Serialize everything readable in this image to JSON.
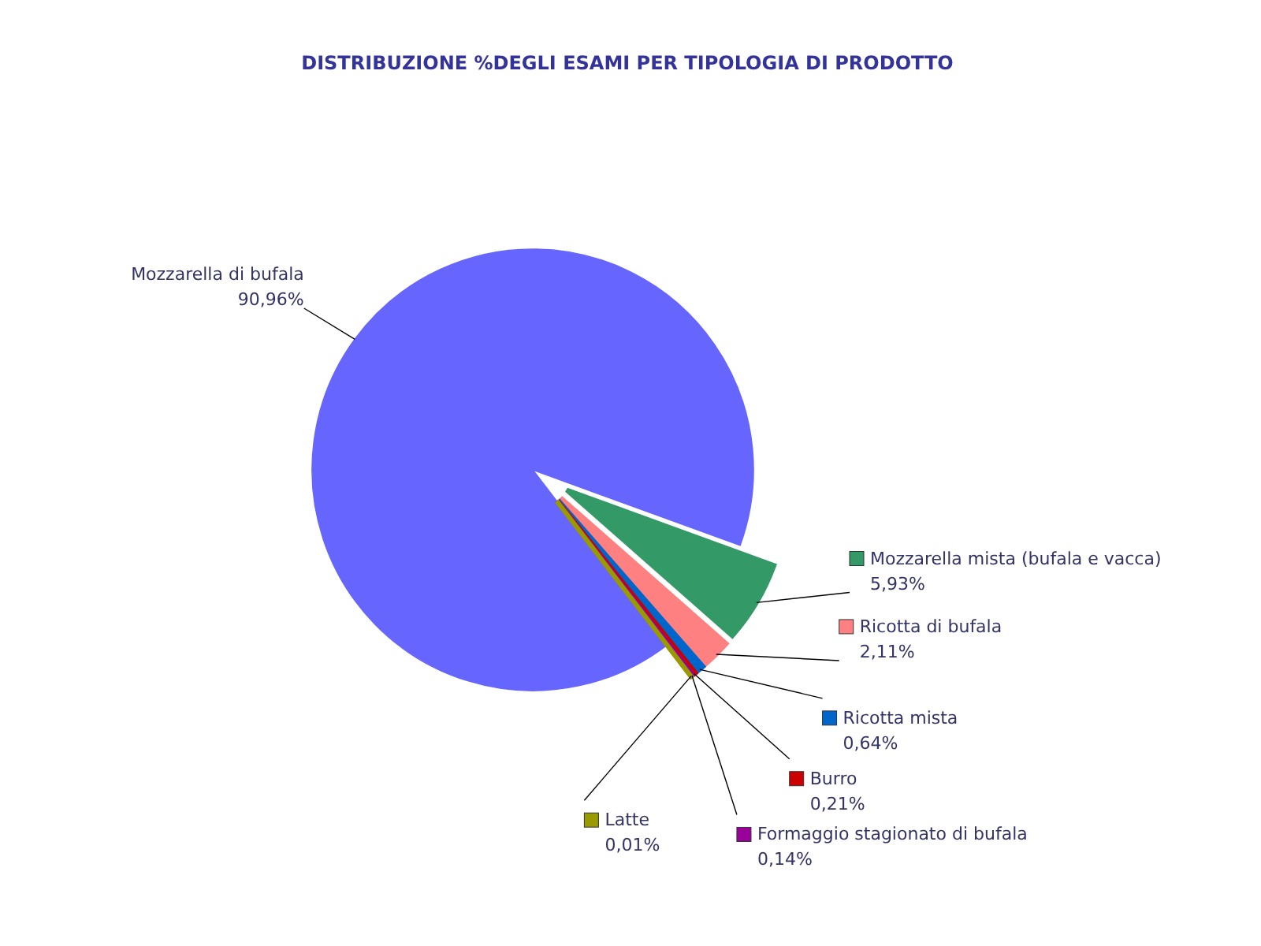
{
  "chart_data": {
    "type": "pie",
    "title": "DISTRIBUZIONE %DEGLI ESAMI PER TIPOLOGIA DI PRODOTTO",
    "categories": [
      "Mozzarella di bufala",
      "Mozzarella mista (bufala e vacca)",
      "Ricotta di bufala",
      "Ricotta mista",
      "Burro",
      "Formaggio stagionato di bufala",
      "Latte"
    ],
    "values": [
      90.96,
      5.93,
      2.11,
      0.64,
      0.21,
      0.14,
      0.01
    ],
    "value_labels": [
      "90,96%",
      "5,93%",
      "2,11%",
      "0,64%",
      "0,21%",
      "0,14%",
      "0,01%"
    ],
    "legend": "bottom right",
    "colors": [
      "#6666ff",
      "#339966",
      "#ff8080",
      "#0066cc",
      "#cc0000",
      "#990099",
      "#999900"
    ]
  }
}
